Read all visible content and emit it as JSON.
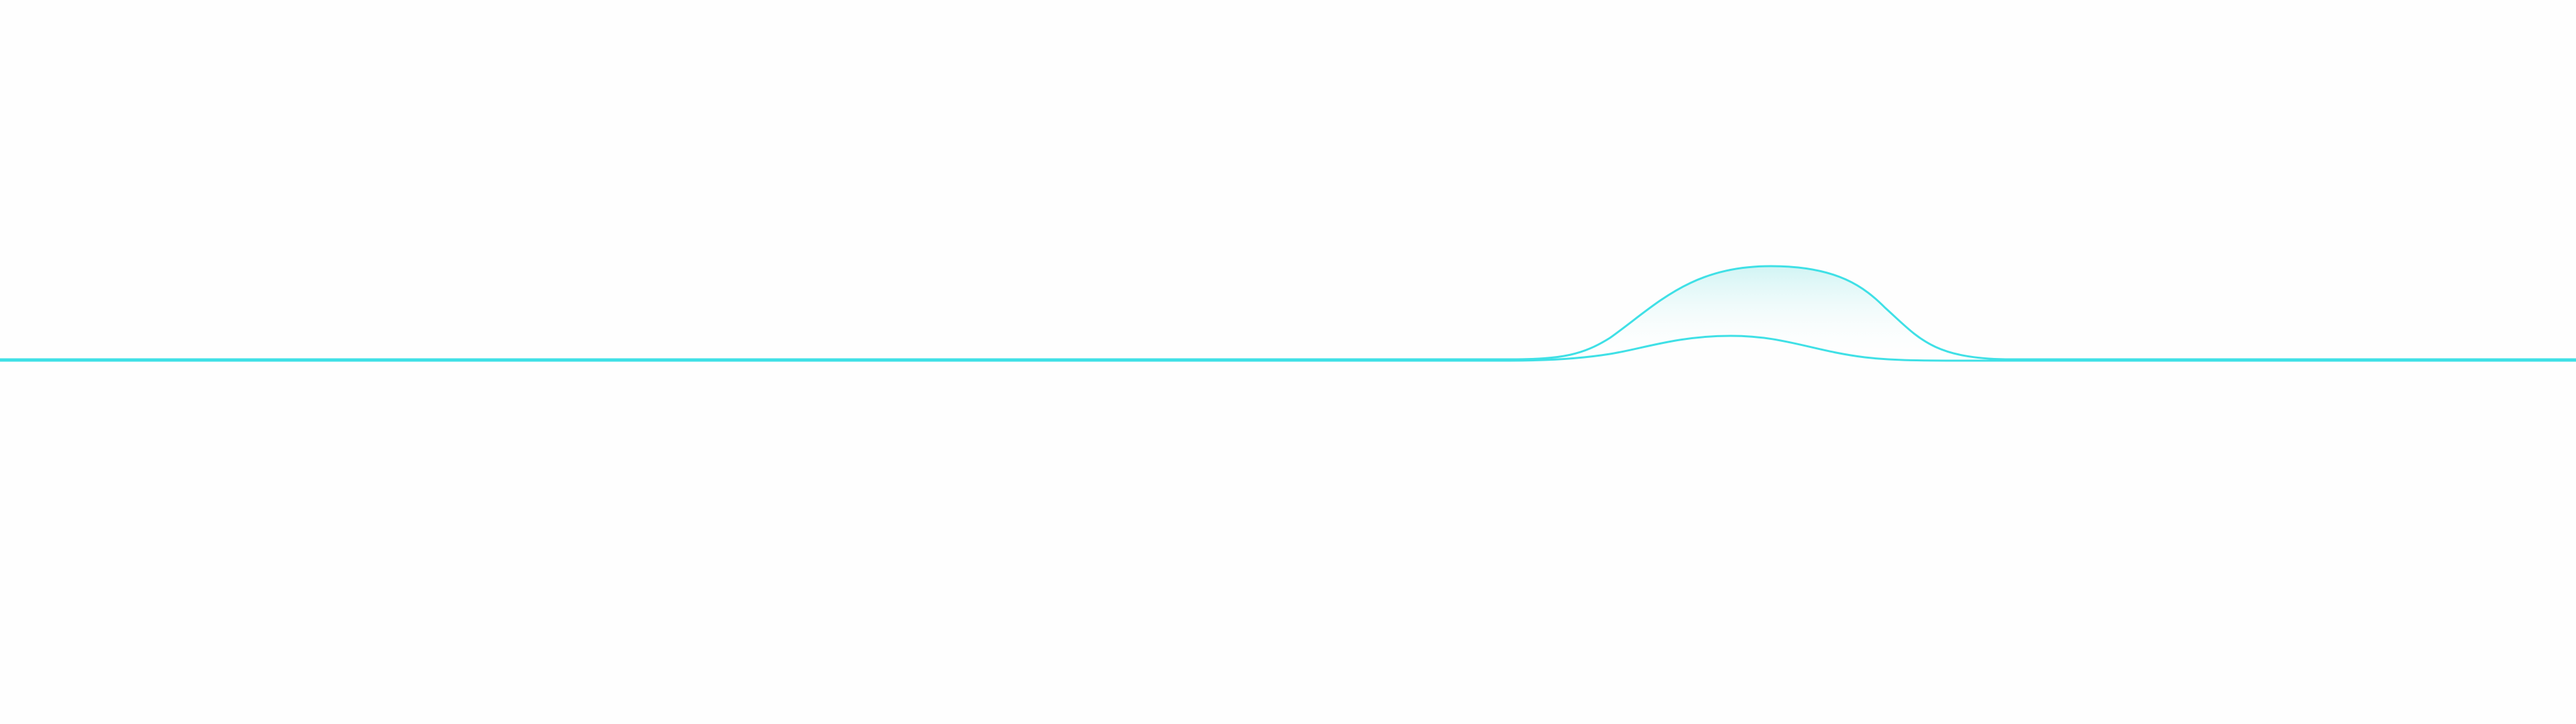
{
  "decoration": {
    "description_free": true,
    "stroke_color": "#3fe0e6",
    "fill_color_top": "#cdf3f3",
    "fill_color_bottom": "#ffffff",
    "background_color": "#fefefe"
  }
}
